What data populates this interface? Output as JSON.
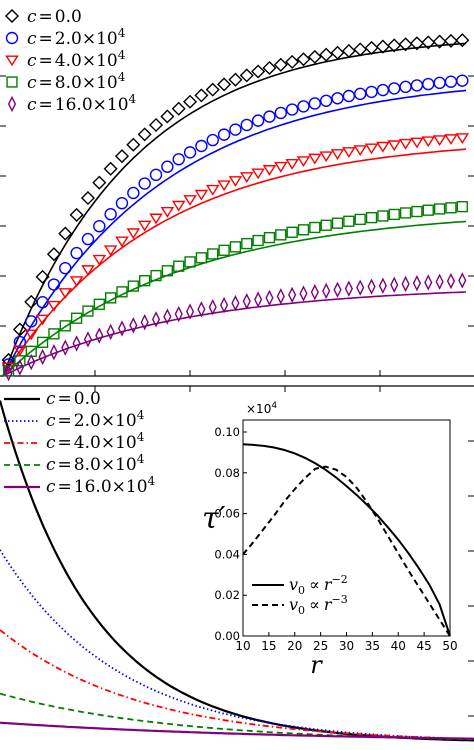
{
  "chart_data": [
    {
      "type": "line",
      "panel": "top",
      "xlabel": "",
      "ylabel": "",
      "grid": false,
      "legend_position": "top-left",
      "xlim": [
        0,
        1
      ],
      "ylim": [
        0,
        1
      ],
      "legend": {
        "prefix": "c",
        "eq": "=",
        "times": "×10",
        "exp": "4",
        "entries": [
          {
            "mant": "0.0",
            "sci": false,
            "marker": "diamond",
            "color": "#000000"
          },
          {
            "mant": "2.0",
            "sci": true,
            "marker": "circle",
            "color": "#0000ff"
          },
          {
            "mant": "4.0",
            "sci": true,
            "marker": "triangle-down",
            "color": "#ff0000"
          },
          {
            "mant": "8.0",
            "sci": true,
            "marker": "square",
            "color": "#008000"
          },
          {
            "mant": "16.0",
            "sci": true,
            "marker": "thin-diamond",
            "color": "#800080"
          }
        ]
      },
      "series": [
        {
          "line_max": 0.99,
          "line_k": 3.6,
          "marker_max": 1.0,
          "marker_k": 4.0,
          "color": "#000000",
          "marker": "diamond"
        },
        {
          "line_max": 0.85,
          "line_k": 3.0,
          "marker_max": 0.88,
          "marker_k": 3.2,
          "color": "#0000ff",
          "marker": "circle"
        },
        {
          "line_max": 0.675,
          "line_k": 3.0,
          "marker_max": 0.71,
          "marker_k": 3.0,
          "color": "#ff0000",
          "marker": "triangle-down"
        },
        {
          "line_max": 0.46,
          "line_k": 2.6,
          "marker_max": 0.505,
          "marker_k": 2.3,
          "color": "#008000",
          "marker": "square"
        },
        {
          "line_max": 0.25,
          "line_k": 2.6,
          "marker_max": 0.285,
          "marker_k": 2.3,
          "color": "#800080",
          "marker": "thin-diamond"
        }
      ]
    },
    {
      "type": "line",
      "panel": "bottom",
      "xlabel": "",
      "ylabel": "",
      "grid": false,
      "legend_position": "top-left",
      "xlim": [
        0,
        1
      ],
      "ylim": [
        0,
        1
      ],
      "legend": {
        "prefix": "c",
        "eq": "=",
        "times": "×10",
        "exp": "4",
        "entries": [
          {
            "mant": "0.0",
            "sci": false,
            "style": "solid",
            "color": "#000000"
          },
          {
            "mant": "2.0",
            "sci": true,
            "style": "dotted",
            "color": "#0000ff"
          },
          {
            "mant": "4.0",
            "sci": true,
            "style": "dashdot",
            "color": "#ff0000"
          },
          {
            "mant": "8.0",
            "sci": true,
            "style": "dashed",
            "color": "#008000"
          },
          {
            "mant": "16.0",
            "sci": true,
            "style": "solid",
            "color": "#800080"
          }
        ]
      },
      "series": [
        {
          "start": 0.96,
          "k": 5.0,
          "color": "#000000",
          "style": "solid"
        },
        {
          "start": 0.55,
          "k": 4.0,
          "color": "#0000ff",
          "style": "dotted"
        },
        {
          "start": 0.33,
          "k": 3.4,
          "color": "#ff0000",
          "style": "dashdot"
        },
        {
          "start": 0.155,
          "k": 2.7,
          "color": "#008000",
          "style": "dashed"
        },
        {
          "start": 0.075,
          "k": 1.6,
          "color": "#800080",
          "style": "solid"
        }
      ]
    },
    {
      "type": "line",
      "panel": "inset",
      "ylabel": "τ′",
      "xlabel": "r",
      "yscale_note": "×10",
      "yscale_exp": "4",
      "xlim": [
        10,
        50
      ],
      "ylim": [
        0,
        0.1
      ],
      "xticks": [
        "10",
        "15",
        "20",
        "25",
        "30",
        "35",
        "40",
        "45",
        "50"
      ],
      "yticks": [
        "0.00",
        "0.02",
        "0.04",
        "0.06",
        "0.08",
        "0.10"
      ],
      "legend_position": "lower-left",
      "legend": [
        {
          "lhs": "v",
          "sub": "0",
          "rel": "∝",
          "rhs": "r",
          "exp": "−2",
          "style": "solid"
        },
        {
          "lhs": "v",
          "sub": "0",
          "rel": "∝",
          "rhs": "r",
          "exp": "−3",
          "style": "dashed"
        }
      ],
      "series": [
        {
          "style": "solid",
          "x": [
            10,
            12,
            14,
            16,
            18,
            20,
            22,
            24,
            26,
            28,
            30,
            32,
            34,
            36,
            38,
            40,
            42,
            44,
            46,
            48,
            50
          ],
          "y": [
            0.094,
            0.0937,
            0.0932,
            0.0924,
            0.0912,
            0.0895,
            0.0873,
            0.0846,
            0.0814,
            0.0777,
            0.0735,
            0.069,
            0.0642,
            0.059,
            0.0533,
            0.0472,
            0.0405,
            0.0332,
            0.0252,
            0.0155,
            0.0
          ]
        },
        {
          "style": "dashed",
          "x": [
            10,
            12,
            14,
            16,
            18,
            20,
            22,
            24,
            26,
            28,
            30,
            32,
            34,
            36,
            38,
            40,
            42,
            44,
            46,
            48,
            50
          ],
          "y": [
            0.04,
            0.046,
            0.0525,
            0.059,
            0.066,
            0.072,
            0.0775,
            0.082,
            0.083,
            0.0815,
            0.078,
            0.0725,
            0.0655,
            0.0575,
            0.049,
            0.0405,
            0.032,
            0.024,
            0.016,
            0.008,
            0.0
          ]
        }
      ]
    }
  ]
}
